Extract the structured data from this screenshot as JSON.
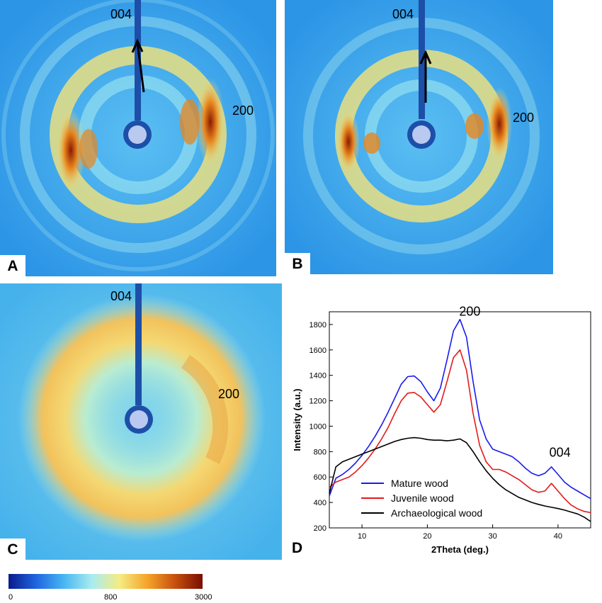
{
  "panels": {
    "a": {
      "letter": "A",
      "label_004": "004",
      "label_200": "200"
    },
    "b": {
      "letter": "B",
      "label_004": "004",
      "label_200": "200"
    },
    "c": {
      "letter": "C",
      "label_004": "004",
      "label_200": "200"
    }
  },
  "colors": {
    "detector_background": "#3aa6ef",
    "ring_yellow": "#f2e27a",
    "ring_cyan": "#8fd8ee",
    "peak_orange": "#e8861e",
    "peak_dark": "#8a1a02",
    "beamstop": "#1d4fa8",
    "mature": "#1a1aee",
    "juvenile": "#e31a1a",
    "archaeological": "#000000"
  },
  "colorbar": {
    "gradient": [
      "#0a1a8c",
      "#1f66e0",
      "#49b6f2",
      "#a8ecf0",
      "#f5ec84",
      "#f5a52a",
      "#c7500e",
      "#7a0d02"
    ],
    "ticks": [
      "0",
      "800",
      "3000"
    ]
  },
  "chart_data": {
    "type": "line",
    "panel_letter": "D",
    "xlabel": "2Theta (deg.)",
    "ylabel": "Intensity (a.u.)",
    "xlim": [
      5,
      45
    ],
    "ylim": [
      200,
      1900
    ],
    "xticks": [
      10,
      20,
      30,
      40
    ],
    "yticks": [
      200,
      400,
      600,
      800,
      1000,
      1200,
      1400,
      1600,
      1800
    ],
    "grid": false,
    "legend_position": "bottom-left",
    "annotations": [
      {
        "text": "200",
        "x": 26.5,
        "y": 1870
      },
      {
        "text": "004",
        "x": 40.3,
        "y": 760
      }
    ],
    "series": [
      {
        "name": "Mature wood",
        "x": [
          5,
          6,
          7,
          8,
          9,
          10,
          11,
          12,
          13,
          14,
          15,
          16,
          17,
          18,
          19,
          20,
          21,
          22,
          23,
          24,
          25,
          26,
          27,
          28,
          29,
          30,
          31,
          32,
          33,
          34,
          35,
          36,
          37,
          38,
          39,
          40,
          41,
          42,
          43,
          44,
          45
        ],
        "y": [
          450,
          590,
          620,
          660,
          710,
          770,
          840,
          920,
          1010,
          1110,
          1220,
          1330,
          1390,
          1395,
          1350,
          1270,
          1200,
          1300,
          1520,
          1750,
          1840,
          1700,
          1350,
          1050,
          900,
          820,
          800,
          780,
          760,
          720,
          670,
          630,
          610,
          630,
          680,
          620,
          560,
          520,
          490,
          460,
          430
        ]
      },
      {
        "name": "Juvenile wood",
        "x": [
          5,
          6,
          7,
          8,
          9,
          10,
          11,
          12,
          13,
          14,
          15,
          16,
          17,
          18,
          19,
          20,
          21,
          22,
          23,
          24,
          25,
          26,
          27,
          28,
          29,
          30,
          31,
          32,
          33,
          34,
          35,
          36,
          37,
          38,
          39,
          40,
          41,
          42,
          43,
          44,
          45
        ],
        "y": [
          520,
          560,
          580,
          600,
          640,
          690,
          750,
          820,
          900,
          990,
          1100,
          1200,
          1260,
          1265,
          1230,
          1170,
          1110,
          1170,
          1350,
          1540,
          1600,
          1440,
          1100,
          850,
          720,
          660,
          660,
          640,
          610,
          580,
          540,
          500,
          480,
          490,
          550,
          490,
          430,
          380,
          350,
          330,
          320
        ]
      },
      {
        "name": "Archaeological wood",
        "x": [
          5,
          6,
          7,
          8,
          9,
          10,
          11,
          12,
          13,
          14,
          15,
          16,
          17,
          18,
          19,
          20,
          21,
          22,
          23,
          24,
          25,
          26,
          27,
          28,
          29,
          30,
          31,
          32,
          33,
          34,
          35,
          36,
          37,
          38,
          39,
          40,
          41,
          42,
          43,
          44,
          45
        ],
        "y": [
          470,
          680,
          720,
          740,
          760,
          780,
          800,
          820,
          840,
          860,
          880,
          895,
          905,
          910,
          905,
          895,
          890,
          890,
          885,
          890,
          900,
          870,
          800,
          720,
          650,
          590,
          540,
          500,
          470,
          440,
          420,
          400,
          385,
          372,
          362,
          352,
          340,
          325,
          310,
          285,
          250
        ]
      }
    ]
  }
}
